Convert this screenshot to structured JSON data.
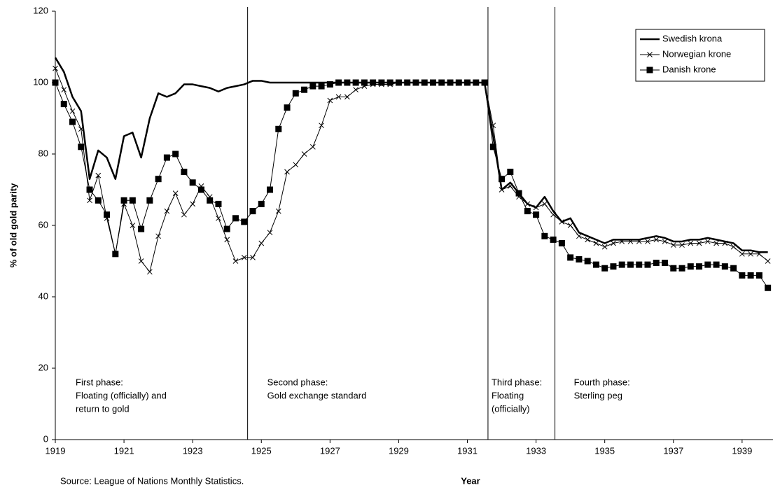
{
  "chart_data": {
    "type": "line",
    "y_label": "% of old gold parity",
    "x_label": "Year",
    "source": "Source: League of Nations Monthly Statistics.",
    "xlim": [
      1919,
      1939.9
    ],
    "xticks": [
      1919,
      1921,
      1923,
      1925,
      1927,
      1929,
      1931,
      1933,
      1935,
      1937,
      1939
    ],
    "ylim": [
      0,
      120
    ],
    "yticks": [
      0,
      20,
      40,
      60,
      80,
      100,
      120
    ],
    "legend": "top-right",
    "phase_lines": [
      1924.6,
      1931.6,
      1933.55
    ],
    "annotations": [
      {
        "lines": [
          "First phase:",
          "Floating (officially) and",
          "return to gold"
        ]
      },
      {
        "lines": [
          "Second phase:",
          "Gold exchange standard"
        ]
      },
      {
        "lines": [
          "Third phase:",
          "Floating",
          "(officially)"
        ]
      },
      {
        "lines": [
          "Fourth phase:",
          "Sterling peg"
        ]
      }
    ],
    "x": [
      1919,
      1919.25,
      1919.5,
      1919.75,
      1920,
      1920.25,
      1920.5,
      1920.75,
      1921,
      1921.25,
      1921.5,
      1921.75,
      1922,
      1922.25,
      1922.5,
      1922.75,
      1923,
      1923.25,
      1923.5,
      1923.75,
      1924,
      1924.25,
      1924.5,
      1924.75,
      1925,
      1925.25,
      1925.5,
      1925.75,
      1926,
      1926.25,
      1926.5,
      1926.75,
      1927,
      1927.25,
      1927.5,
      1927.75,
      1928,
      1928.25,
      1928.5,
      1928.75,
      1929,
      1929.25,
      1929.5,
      1929.75,
      1930,
      1930.25,
      1930.5,
      1930.75,
      1931,
      1931.25,
      1931.5,
      1931.75,
      1932,
      1932.25,
      1932.5,
      1932.75,
      1933,
      1933.25,
      1933.5,
      1933.75,
      1934,
      1934.25,
      1934.5,
      1934.75,
      1935,
      1935.25,
      1935.5,
      1935.75,
      1936,
      1936.25,
      1936.5,
      1936.75,
      1937,
      1937.25,
      1937.5,
      1937.75,
      1938,
      1938.25,
      1938.5,
      1938.75,
      1939,
      1939.25,
      1939.5,
      1939.75
    ],
    "series": [
      {
        "name": "Swedish krona",
        "color": "#000000",
        "width": 2.5,
        "marker": "none",
        "values": [
          107,
          103,
          96,
          92,
          73,
          81,
          79,
          73,
          85,
          86,
          79,
          90,
          97,
          96,
          97,
          99.5,
          99.5,
          99,
          98.5,
          97.5,
          98.5,
          99,
          99.5,
          100.5,
          100.5,
          100,
          100,
          100,
          100,
          100,
          100,
          100,
          100,
          100,
          100,
          100,
          100,
          100,
          100,
          100,
          100,
          100,
          100,
          100,
          100,
          100,
          100,
          100,
          100,
          100,
          100,
          85,
          70,
          72,
          69,
          66,
          65,
          68,
          64,
          61,
          62,
          58,
          57,
          56,
          55,
          56,
          56,
          56,
          56,
          56.5,
          57,
          56.5,
          55.5,
          55.5,
          56,
          56,
          56.5,
          56,
          55.5,
          55,
          53,
          53,
          52.5,
          52.5
        ]
      },
      {
        "name": "Norwegian krone",
        "color": "#000000",
        "width": 1,
        "marker": "x",
        "values": [
          104,
          98,
          92,
          87,
          67,
          74,
          62,
          52,
          66,
          60,
          50,
          47,
          57,
          64,
          69,
          63,
          66,
          71,
          68,
          62,
          56,
          50,
          51,
          51,
          55,
          58,
          64,
          75,
          77,
          80,
          82,
          88,
          95,
          96,
          96,
          98,
          99,
          99.5,
          99.5,
          99.5,
          100,
          100,
          100,
          100,
          100,
          100,
          100,
          100,
          100,
          100,
          100,
          88,
          70,
          71,
          68,
          66,
          65,
          66,
          63,
          61,
          60,
          57,
          56,
          55,
          54,
          55,
          55.5,
          55.5,
          55.5,
          55.5,
          56,
          55.5,
          54.5,
          54.5,
          55,
          55,
          55.5,
          55,
          55,
          54,
          52,
          52,
          52,
          50
        ]
      },
      {
        "name": "Danish krone",
        "color": "#000000",
        "width": 1,
        "marker": "square",
        "values": [
          100,
          94,
          89,
          82,
          70,
          67,
          63,
          52,
          67,
          67,
          59,
          67,
          73,
          79,
          80,
          75,
          72,
          70,
          67,
          66,
          59,
          62,
          61,
          64,
          66,
          70,
          87,
          93,
          97,
          98,
          99,
          99,
          99.5,
          100,
          100,
          100,
          100,
          100,
          100,
          100,
          100,
          100,
          100,
          100,
          100,
          100,
          100,
          100,
          100,
          100,
          100,
          82,
          73,
          75,
          69,
          64,
          63,
          57,
          56,
          55,
          51,
          50.5,
          50,
          49,
          48,
          48.5,
          49,
          49,
          49,
          49,
          49.5,
          49.5,
          48,
          48,
          48.5,
          48.5,
          49,
          49,
          48.5,
          48,
          46,
          46,
          46,
          42.5
        ]
      }
    ]
  }
}
